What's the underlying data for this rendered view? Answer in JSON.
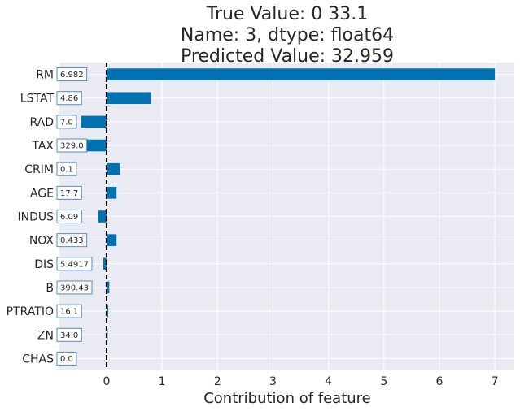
{
  "chart_data": {
    "type": "bar",
    "orientation": "horizontal",
    "title_lines": [
      "True Value: 0    33.1",
      "Name: 3, dtype: float64",
      "Predicted Value: 32.959"
    ],
    "xlabel": "Contribution of feature",
    "ylabel": "",
    "xlim": [
      -0.85,
      7.35
    ],
    "xticks": [
      0,
      1,
      2,
      3,
      4,
      5,
      6,
      7
    ],
    "grid": true,
    "reference_line": 0,
    "categories": [
      "RM",
      "LSTAT",
      "RAD",
      "TAX",
      "CRIM",
      "AGE",
      "INDUS",
      "NOX",
      "DIS",
      "B",
      "PTRATIO",
      "ZN",
      "CHAS"
    ],
    "values": [
      7.0,
      0.8,
      -0.46,
      -0.4,
      0.24,
      0.18,
      -0.15,
      0.18,
      -0.06,
      0.05,
      0.03,
      0.02,
      0.0
    ],
    "feature_values": [
      "6.982",
      "4.86",
      "7.0",
      "329.0",
      "0.1",
      "17.7",
      "6.09",
      "0.433",
      "5.4917",
      "390.43",
      "16.1",
      "34.0",
      "0.0"
    ],
    "colors": {
      "bar": "#0072b2",
      "background": "#eaeaf2",
      "grid": "#ffffff",
      "text": "#262626",
      "label_box_border": "#4c8fc2",
      "label_box_fill": "#ffffff",
      "zero_line": "#000000"
    }
  }
}
